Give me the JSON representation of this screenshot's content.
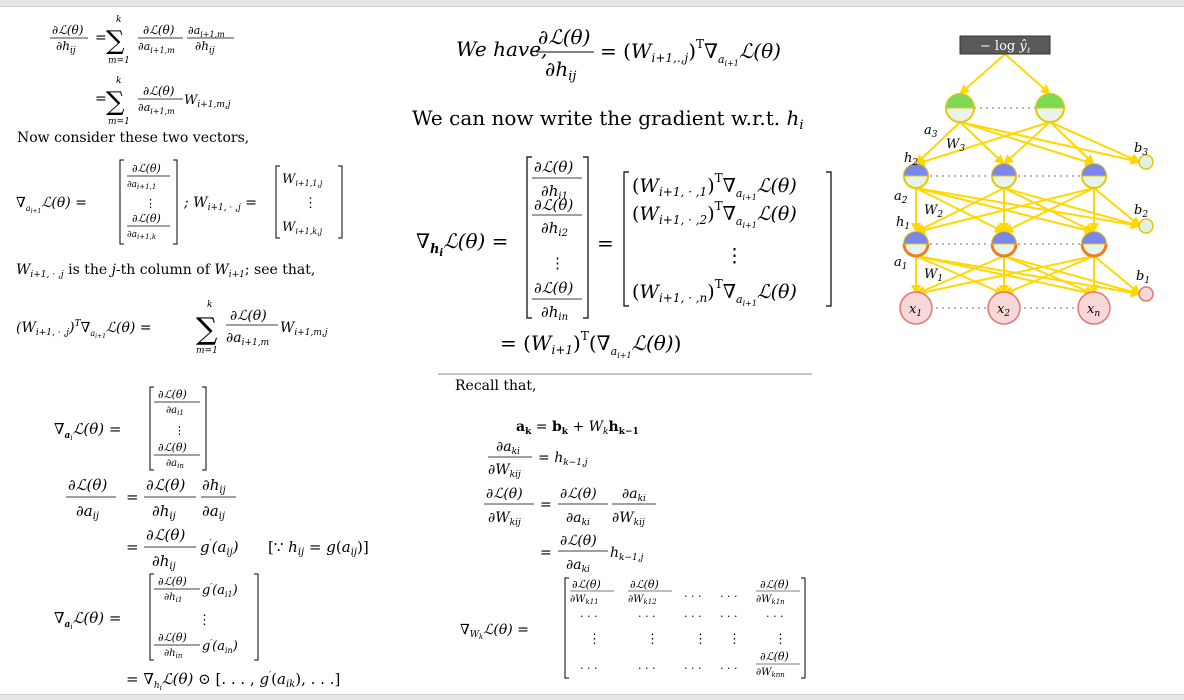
{
  "left": {
    "eq1_lhs": "∂ℒ(θ) / ∂h_ij",
    "eq1_sum_upper": "k",
    "eq1_sum_lower": "m=1",
    "eq1_frac1": "∂ℒ(θ) / ∂a_{i+1,m}",
    "eq1_frac2": "∂a_{i+1,m} / ∂h_ij",
    "eq2_term": "W_{i+1,m,j}",
    "consider_text": "Now consider these two vectors,",
    "vec_grad_lhs": "∇_{a_{i+1}} ℒ(θ) =",
    "vec_grad_entries": [
      "∂ℒ(θ)/∂a_{i+1,1}",
      "⋮",
      "∂ℒ(θ)/∂a_{i+1,k}"
    ],
    "vec_w_lhs": "; W_{i+1, · ,j} =",
    "vec_w_entries": [
      "W_{i+1,1,j}",
      "⋮",
      "W_{i+1,k,j}"
    ],
    "column_text": "W_{i+1, · ,j} is the j-th column of W_{i+1}; see that,",
    "transpose_eq_lhs": "(W_{i+1, · ,j})^T ∇_{a_{i+1}} ℒ(θ) =",
    "transpose_eq_term": "W_{i+1,m,j}",
    "grad_a_lhs": "∇_{a_i} ℒ(θ) =",
    "grad_a_entries": [
      "∂ℒ(θ)/∂a_i1",
      "⋮",
      "∂ℒ(θ)/∂a_in"
    ],
    "chain_rhs1": "∂h_ij / ∂a_ij",
    "chain_rhs2": "g′(a_ij)",
    "chain_because": "[∵ h_ij = g(a_ij)]",
    "grad_a2_entries": [
      "g′(a_i1)",
      "⋮",
      "g′(a_in)"
    ],
    "final_eq": "= ∇_{h_i} ℒ(θ) ⊙ [. . . , g′(a_ik), . . .]"
  },
  "middle": {
    "we_have_prefix": "We have,",
    "we_have_rhs": "= (W_{i+1,.,j})^T ∇_{a_{i+1}} ℒ(θ)",
    "gradient_text": "We can now write the gradient w.r.t. h_i",
    "grad_h_lhs": "∇_{h_i} ℒ(θ) =",
    "grad_h_left_entries": [
      "∂ℒ(θ)/∂h_i1",
      "∂ℒ(θ)/∂h_i2",
      "⋮",
      "∂ℒ(θ)/∂h_in"
    ],
    "grad_h_right_entries": [
      "(W_{i+1, · ,1})^T ∇_{a_{i+1}} ℒ(θ)",
      "(W_{i+1, · ,2})^T ∇_{a_{i+1}} ℒ(θ)",
      "⋮",
      "(W_{i+1, · ,n})^T ∇_{a_{i+1}} ℒ(θ)"
    ],
    "grad_h_final": "= (W_{i+1})^T (∇_{a_{i+1}} ℒ(θ))",
    "recall_text": "Recall that,",
    "recall_eq1": "a_k = b_k + W_k h_{k−1}",
    "recall_eq2_rhs": "= h_{k−1,j}",
    "recall_eq4_rhs": "h_{k−1,j}",
    "grad_w_lhs": "∇_{W_k} ℒ(θ) =",
    "grad_w_row1": [
      "∂ℒ(θ)/∂W_k11",
      "∂ℒ(θ)/∂W_k12",
      ". . .",
      ". . .",
      "∂ℒ(θ)/∂W_k1n"
    ],
    "grad_w_row2": [
      ". . .",
      ". . .",
      ". . .",
      ". . .",
      ". . ."
    ],
    "grad_w_row3": [
      "⋮",
      "⋮",
      "⋮",
      "⋮",
      "⋮"
    ],
    "grad_w_row4": [
      ". . .",
      ". . .",
      ". . .",
      ". . .",
      "∂ℒ(θ)/∂W_knn"
    ]
  },
  "network": {
    "loss_label": "− log ŷ_ℓ",
    "output_labels": [
      "a3",
      "W3",
      "h2"
    ],
    "layer2_labels": [
      "a2",
      "W2",
      "h1"
    ],
    "layer1_labels": [
      "a1",
      "W1"
    ],
    "bias_labels": [
      "b3",
      "b2",
      "b1"
    ],
    "input_labels": [
      "x1",
      "x2",
      "xn"
    ],
    "colors": {
      "edge": "#ffe135",
      "edge_stroke": "#e8c800",
      "output_fill": "#7ed957",
      "hidden_fill": "#7b86e8",
      "node_half": "#e6f3ee",
      "activation_arc": "#f07d1e",
      "input_fill": "#f8d7d7",
      "input_stroke": "#e27676",
      "bias_fill": "#e2f2e2",
      "loss_box": "#595959"
    }
  }
}
